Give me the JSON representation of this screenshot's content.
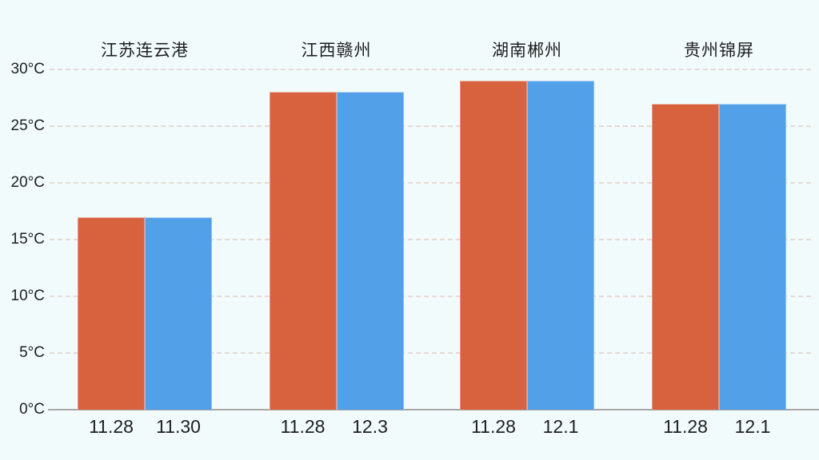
{
  "page": {
    "background_color": "#f1fbfc",
    "text_color": "#1f1f1f",
    "grid_color": "#e6d9d5",
    "axis_color": "#a9a7a5"
  },
  "chart_data": {
    "type": "bar",
    "title": "",
    "xlabel": "",
    "ylabel": "",
    "unit": "°C",
    "ylim": [
      0,
      30
    ],
    "ytick_step": 5,
    "ytick_labels": [
      "0°C",
      "5°C",
      "10°C",
      "15°C",
      "20°C",
      "25°C",
      "30°C"
    ],
    "grid": "horizontal-dashed",
    "legend": "none",
    "series_colors": {
      "first": "#d8613e",
      "second": "#52a0e8"
    },
    "groups": [
      {
        "city": "江苏连云港",
        "bars": [
          {
            "date": "11.28",
            "value_c": 17,
            "series": "first"
          },
          {
            "date": "11.30",
            "value_c": 17,
            "series": "second"
          }
        ]
      },
      {
        "city": "江西赣州",
        "bars": [
          {
            "date": "11.28",
            "value_c": 28,
            "series": "first"
          },
          {
            "date": "12.3",
            "value_c": 28,
            "series": "second"
          }
        ]
      },
      {
        "city": "湖南郴州",
        "bars": [
          {
            "date": "11.28",
            "value_c": 29,
            "series": "first"
          },
          {
            "date": "12.1",
            "value_c": 29,
            "series": "second"
          }
        ]
      },
      {
        "city": "贵州锦屏",
        "bars": [
          {
            "date": "11.28",
            "value_c": 27,
            "series": "first"
          },
          {
            "date": "12.1",
            "value_c": 27,
            "series": "second"
          }
        ]
      }
    ]
  }
}
